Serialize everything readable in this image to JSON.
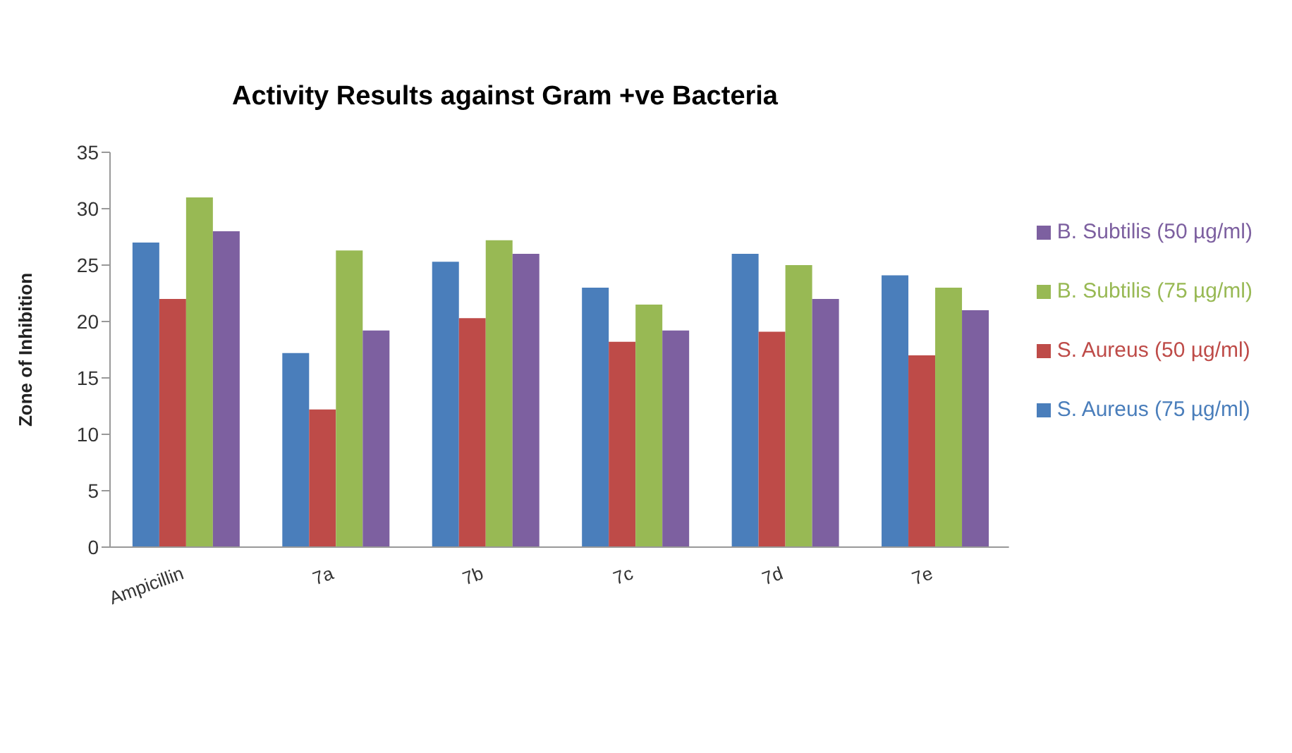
{
  "chart_data": {
    "type": "bar",
    "title": "Activity Results against Gram +ve Bacteria",
    "ylabel": "Zone of Inhibition",
    "categories": [
      "Ampicillin",
      "7a",
      "7b",
      "7c",
      "7d",
      "7e"
    ],
    "series": [
      {
        "name": "S. Aureus (75 µg/ml)",
        "color": "#4a7ebb",
        "values": [
          27,
          17.2,
          25.3,
          23,
          26,
          24.1
        ]
      },
      {
        "name": "S. Aureus (50 µg/ml)",
        "color": "#be4b48",
        "values": [
          22,
          12.2,
          20.3,
          18.2,
          19.1,
          17
        ]
      },
      {
        "name": "B. Subtilis (75 µg/ml)",
        "color": "#98b954",
        "values": [
          31,
          26.3,
          27.2,
          21.5,
          25,
          23
        ]
      },
      {
        "name": "B. Subtilis (50 µg/ml)",
        "color": "#7d60a0",
        "values": [
          28,
          19.2,
          26,
          19.2,
          22,
          21
        ]
      }
    ],
    "ylim": [
      0,
      35
    ],
    "yticks": [
      0,
      5,
      10,
      15,
      20,
      25,
      30,
      35
    ],
    "grid": false,
    "legend": "right"
  }
}
